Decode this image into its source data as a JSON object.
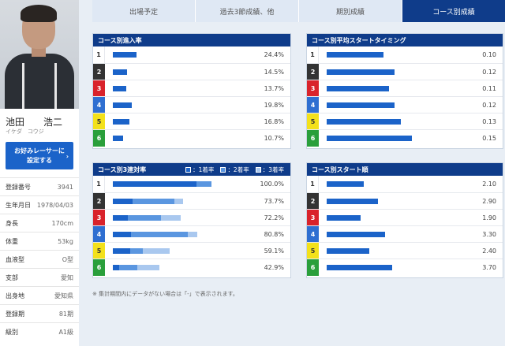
{
  "profile": {
    "name": "池田　　浩二",
    "kana": "イケダ　コウジ",
    "fav_button": [
      "お好みレーサーに",
      "設定する"
    ],
    "info": [
      {
        "k": "登録番号",
        "v": "3941"
      },
      {
        "k": "生年月日",
        "v": "1978/04/03"
      },
      {
        "k": "身長",
        "v": "170cm"
      },
      {
        "k": "体重",
        "v": "53kg"
      },
      {
        "k": "血液型",
        "v": "O型"
      },
      {
        "k": "支部",
        "v": "愛知"
      },
      {
        "k": "出身地",
        "v": "愛知県"
      },
      {
        "k": "登録期",
        "v": "81期"
      },
      {
        "k": "級別",
        "v": "A1級"
      }
    ]
  },
  "tabs": [
    {
      "label": "出場予定",
      "active": false
    },
    {
      "label": "過去3節成績、他",
      "active": false
    },
    {
      "label": "期別成績",
      "active": false
    },
    {
      "label": "コース別成績",
      "active": true
    }
  ],
  "colors": {
    "accent": "#0f3c8a",
    "bar": "#1b63c9",
    "bar2": "#5a96e0",
    "bar3": "#a9c8ef"
  },
  "entry_rate": {
    "title": "コース別進入率",
    "rows": [
      {
        "course": "1",
        "value": 24.4,
        "label": "24.4%"
      },
      {
        "course": "2",
        "value": 14.5,
        "label": "14.5%"
      },
      {
        "course": "3",
        "value": 13.7,
        "label": "13.7%"
      },
      {
        "course": "4",
        "value": 19.8,
        "label": "19.8%"
      },
      {
        "course": "5",
        "value": 16.8,
        "label": "16.8%"
      },
      {
        "course": "6",
        "value": 10.7,
        "label": "10.7%"
      }
    ]
  },
  "start_timing": {
    "title": "コース別平均スタートタイミング",
    "rows": [
      {
        "course": "1",
        "value": 0.1,
        "label": "0.10"
      },
      {
        "course": "2",
        "value": 0.12,
        "label": "0.12"
      },
      {
        "course": "3",
        "value": 0.11,
        "label": "0.11"
      },
      {
        "course": "4",
        "value": 0.12,
        "label": "0.12"
      },
      {
        "course": "5",
        "value": 0.13,
        "label": "0.13"
      },
      {
        "course": "6",
        "value": 0.15,
        "label": "0.15"
      }
    ]
  },
  "top3_rate": {
    "title": "コース別3連対率",
    "legend": [
      "：1着率",
      "：2着率",
      "：3着率"
    ],
    "rows": [
      {
        "course": "1",
        "first": 68,
        "second": 12,
        "third": 0,
        "label": "100.0%"
      },
      {
        "course": "2",
        "first": 16,
        "second": 34,
        "third": 7,
        "label": "73.7%"
      },
      {
        "course": "3",
        "first": 12,
        "second": 27,
        "third": 16,
        "label": "72.2%"
      },
      {
        "course": "4",
        "first": 15,
        "second": 46,
        "third": 8,
        "label": "80.8%"
      },
      {
        "course": "5",
        "first": 14,
        "second": 10,
        "third": 22,
        "label": "59.1%"
      },
      {
        "course": "6",
        "first": 5,
        "second": 15,
        "third": 18,
        "label": "42.9%"
      }
    ]
  },
  "start_order": {
    "title": "コース別スタート順",
    "rows": [
      {
        "course": "1",
        "value": 2.1,
        "label": "2.10"
      },
      {
        "course": "2",
        "value": 2.9,
        "label": "2.90"
      },
      {
        "course": "3",
        "value": 1.9,
        "label": "1.90"
      },
      {
        "course": "4",
        "value": 3.3,
        "label": "3.30"
      },
      {
        "course": "5",
        "value": 2.4,
        "label": "2.40"
      },
      {
        "course": "6",
        "value": 3.7,
        "label": "3.70"
      }
    ]
  },
  "note": "※ 集計期間内にデータがない場合は「-」で表示されます。"
}
